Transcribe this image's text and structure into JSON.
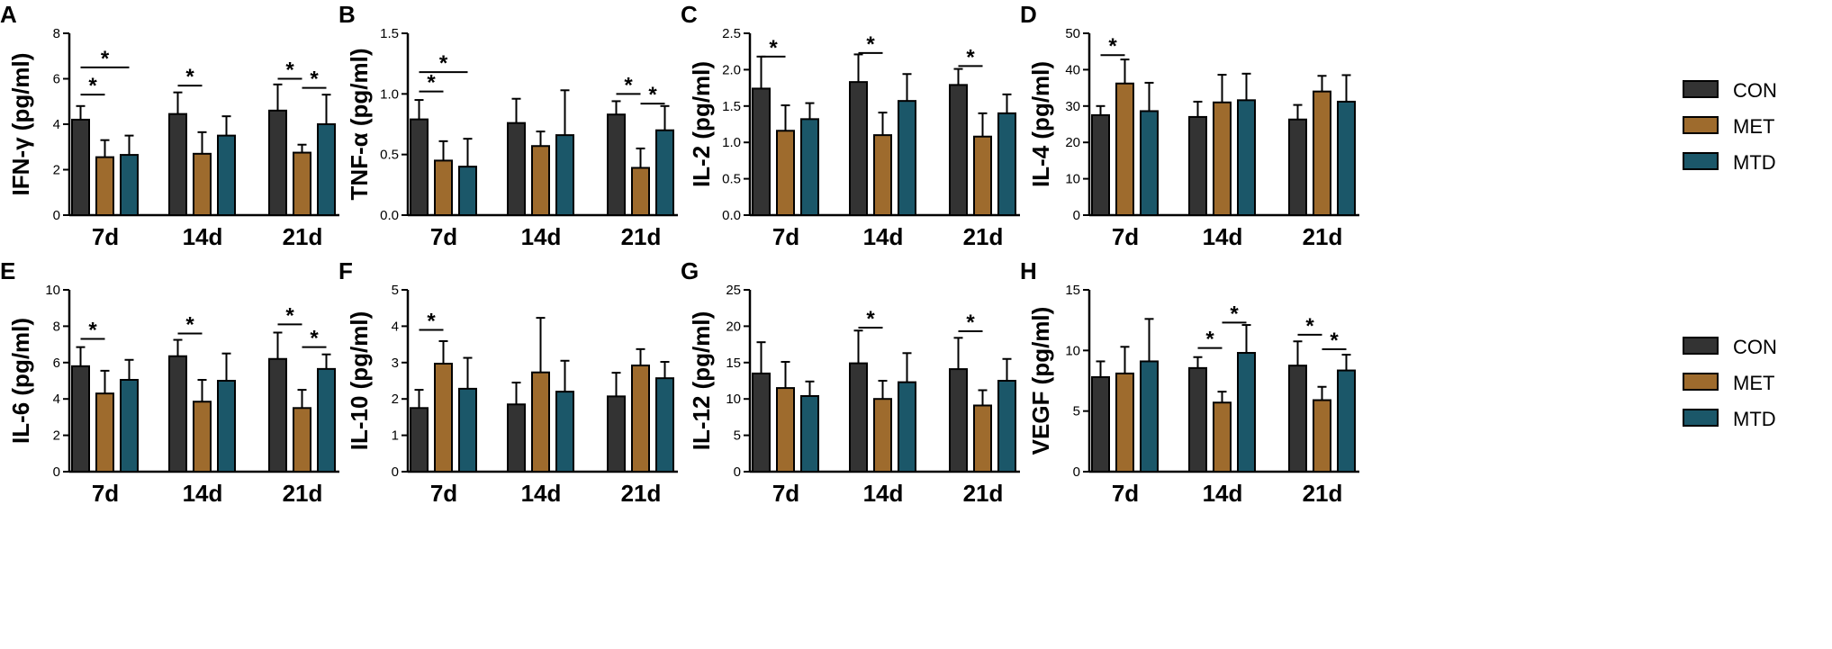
{
  "colors": {
    "CON": "#333333",
    "MET": "#9e6b2d",
    "MTD": "#1b5769",
    "axis": "#000000"
  },
  "legend": [
    {
      "name": "CON",
      "label": "CON"
    },
    {
      "name": "MET",
      "label": "MET"
    },
    {
      "name": "MTD",
      "label": "MTD"
    }
  ],
  "chart_data": [
    {
      "id": "A",
      "panel": "A",
      "type": "bar",
      "ylabel": "IFN-γ (pg/ml)",
      "categories": [
        "7d",
        "14d",
        "21d"
      ],
      "ylim": [
        0,
        8
      ],
      "yticks": [
        0,
        2,
        4,
        6,
        8
      ],
      "series": [
        {
          "name": "CON",
          "values": [
            4.2,
            4.45,
            4.6
          ],
          "errors": [
            0.6,
            0.95,
            1.15
          ]
        },
        {
          "name": "MET",
          "values": [
            2.55,
            2.7,
            2.75
          ],
          "errors": [
            0.75,
            0.95,
            0.35
          ]
        },
        {
          "name": "MTD",
          "values": [
            2.65,
            3.5,
            4.0
          ],
          "errors": [
            0.85,
            0.85,
            1.3
          ]
        }
      ],
      "significance": [
        {
          "group": 0,
          "from": 0,
          "to": 1,
          "level": 5.3,
          "label": "*"
        },
        {
          "group": 0,
          "from": 0,
          "to": 2,
          "level": 6.5,
          "label": "*"
        },
        {
          "group": 1,
          "from": 0,
          "to": 1,
          "level": 5.7,
          "label": "*"
        },
        {
          "group": 2,
          "from": 0,
          "to": 1,
          "level": 6.0,
          "label": "*"
        },
        {
          "group": 2,
          "from": 1,
          "to": 2,
          "level": 5.6,
          "label": "*"
        }
      ]
    },
    {
      "id": "B",
      "panel": "B",
      "type": "bar",
      "ylabel": "TNF-α (pg/ml)",
      "categories": [
        "7d",
        "14d",
        "21d"
      ],
      "ylim": [
        0,
        1.5
      ],
      "yticks": [
        "0.0",
        "0.5",
        "1.0",
        "1.5"
      ],
      "series": [
        {
          "name": "CON",
          "values": [
            0.79,
            0.76,
            0.83
          ],
          "errors": [
            0.16,
            0.2,
            0.11
          ]
        },
        {
          "name": "MET",
          "values": [
            0.45,
            0.57,
            0.39
          ],
          "errors": [
            0.16,
            0.12,
            0.16
          ]
        },
        {
          "name": "MTD",
          "values": [
            0.4,
            0.66,
            0.7
          ],
          "errors": [
            0.23,
            0.37,
            0.2
          ]
        }
      ],
      "significance": [
        {
          "group": 0,
          "from": 0,
          "to": 1,
          "level": 1.02,
          "label": "*"
        },
        {
          "group": 0,
          "from": 0,
          "to": 2,
          "level": 1.18,
          "label": "*"
        },
        {
          "group": 2,
          "from": 0,
          "to": 1,
          "level": 1.0,
          "label": "*"
        },
        {
          "group": 2,
          "from": 1,
          "to": 2,
          "level": 0.92,
          "label": "*"
        }
      ]
    },
    {
      "id": "C",
      "panel": "C",
      "type": "bar",
      "ylabel": "IL-2 (pg/ml)",
      "categories": [
        "7d",
        "14d",
        "21d"
      ],
      "ylim": [
        0,
        2.5
      ],
      "yticks": [
        "0.0",
        "0.5",
        "1.0",
        "1.5",
        "2.0",
        "2.5"
      ],
      "series": [
        {
          "name": "CON",
          "values": [
            1.74,
            1.83,
            1.79
          ],
          "errors": [
            0.44,
            0.38,
            0.22
          ]
        },
        {
          "name": "MET",
          "values": [
            1.16,
            1.1,
            1.08
          ],
          "errors": [
            0.35,
            0.31,
            0.32
          ]
        },
        {
          "name": "MTD",
          "values": [
            1.32,
            1.57,
            1.4
          ],
          "errors": [
            0.22,
            0.37,
            0.26
          ]
        }
      ],
      "significance": [
        {
          "group": 0,
          "from": 0,
          "to": 1,
          "level": 2.18,
          "label": "*"
        },
        {
          "group": 1,
          "from": 0,
          "to": 1,
          "level": 2.23,
          "label": "*"
        },
        {
          "group": 2,
          "from": 0,
          "to": 1,
          "level": 2.05,
          "label": "*"
        }
      ]
    },
    {
      "id": "D",
      "panel": "D",
      "type": "bar",
      "ylabel": "IL-4 (pg/ml)",
      "categories": [
        "7d",
        "14d",
        "21d"
      ],
      "ylim": [
        0,
        50
      ],
      "yticks": [
        0,
        10,
        20,
        30,
        40,
        50
      ],
      "series": [
        {
          "name": "CON",
          "values": [
            27.5,
            27.0,
            26.3
          ],
          "errors": [
            2.5,
            4.2,
            4.0
          ]
        },
        {
          "name": "MET",
          "values": [
            36.2,
            31.0,
            34.0
          ],
          "errors": [
            6.6,
            7.6,
            4.3
          ]
        },
        {
          "name": "MTD",
          "values": [
            28.6,
            31.6,
            31.2
          ],
          "errors": [
            7.8,
            7.3,
            7.3
          ]
        }
      ],
      "significance": [
        {
          "group": 0,
          "from": 0,
          "to": 1,
          "level": 44.0,
          "label": "*"
        }
      ]
    },
    {
      "id": "E",
      "panel": "E",
      "type": "bar",
      "ylabel": "IL-6 (pg/ml)",
      "categories": [
        "7d",
        "14d",
        "21d"
      ],
      "ylim": [
        0,
        10
      ],
      "yticks": [
        0,
        2,
        4,
        6,
        8,
        10
      ],
      "series": [
        {
          "name": "CON",
          "values": [
            5.8,
            6.35,
            6.2
          ],
          "errors": [
            1.05,
            0.9,
            1.45
          ]
        },
        {
          "name": "MET",
          "values": [
            4.3,
            3.85,
            3.5
          ],
          "errors": [
            1.25,
            1.2,
            1.0
          ]
        },
        {
          "name": "MTD",
          "values": [
            5.05,
            5.0,
            5.65
          ],
          "errors": [
            1.1,
            1.5,
            0.8
          ]
        }
      ],
      "significance": [
        {
          "group": 0,
          "from": 0,
          "to": 1,
          "level": 7.3,
          "label": "*"
        },
        {
          "group": 1,
          "from": 0,
          "to": 1,
          "level": 7.6,
          "label": "*"
        },
        {
          "group": 2,
          "from": 0,
          "to": 1,
          "level": 8.1,
          "label": "*"
        },
        {
          "group": 2,
          "from": 1,
          "to": 2,
          "level": 6.85,
          "label": "*"
        }
      ]
    },
    {
      "id": "F",
      "panel": "F",
      "type": "bar",
      "ylabel": "IL-10 (pg/ml)",
      "categories": [
        "7d",
        "14d",
        "21d"
      ],
      "ylim": [
        0,
        5
      ],
      "yticks": [
        0,
        1,
        2,
        3,
        4,
        5
      ],
      "series": [
        {
          "name": "CON",
          "values": [
            1.75,
            1.85,
            2.07
          ],
          "errors": [
            0.5,
            0.6,
            0.65
          ]
        },
        {
          "name": "MET",
          "values": [
            2.97,
            2.73,
            2.92
          ],
          "errors": [
            0.62,
            1.5,
            0.45
          ]
        },
        {
          "name": "MTD",
          "values": [
            2.28,
            2.2,
            2.57
          ],
          "errors": [
            0.85,
            0.85,
            0.45
          ]
        }
      ],
      "significance": [
        {
          "group": 0,
          "from": 0,
          "to": 1,
          "level": 3.9,
          "label": "*"
        }
      ]
    },
    {
      "id": "G",
      "panel": "G",
      "type": "bar",
      "ylabel": "IL-12 (pg/ml)",
      "categories": [
        "7d",
        "14d",
        "21d"
      ],
      "ylim": [
        0,
        25
      ],
      "yticks": [
        0,
        5,
        10,
        15,
        20,
        25
      ],
      "series": [
        {
          "name": "CON",
          "values": [
            13.5,
            14.9,
            14.1
          ],
          "errors": [
            4.3,
            4.5,
            4.3
          ]
        },
        {
          "name": "MET",
          "values": [
            11.5,
            10.0,
            9.1
          ],
          "errors": [
            3.6,
            2.5,
            2.1
          ]
        },
        {
          "name": "MTD",
          "values": [
            10.4,
            12.3,
            12.5
          ],
          "errors": [
            2.0,
            4.0,
            3.0
          ]
        }
      ],
      "significance": [
        {
          "group": 1,
          "from": 0,
          "to": 1,
          "level": 19.8,
          "label": "*"
        },
        {
          "group": 2,
          "from": 0,
          "to": 1,
          "level": 19.3,
          "label": "*"
        }
      ]
    },
    {
      "id": "H",
      "panel": "H",
      "type": "bar",
      "ylabel": "VEGF (pg/ml)",
      "categories": [
        "7d",
        "14d",
        "21d"
      ],
      "ylim": [
        0,
        15
      ],
      "yticks": [
        0,
        5,
        10,
        15
      ],
      "series": [
        {
          "name": "CON",
          "values": [
            7.8,
            8.55,
            8.75
          ],
          "errors": [
            1.3,
            0.9,
            2.0
          ]
        },
        {
          "name": "MET",
          "values": [
            8.1,
            5.7,
            5.9
          ],
          "errors": [
            2.2,
            0.9,
            1.1
          ]
        },
        {
          "name": "MTD",
          "values": [
            9.1,
            9.8,
            8.35
          ],
          "errors": [
            3.5,
            2.3,
            1.3
          ]
        }
      ],
      "significance": [
        {
          "group": 1,
          "from": 0,
          "to": 1,
          "level": 10.2,
          "label": "*"
        },
        {
          "group": 1,
          "from": 1,
          "to": 2,
          "level": 12.3,
          "label": "*"
        },
        {
          "group": 2,
          "from": 0,
          "to": 1,
          "level": 11.3,
          "label": "*"
        },
        {
          "group": 2,
          "from": 1,
          "to": 2,
          "level": 10.1,
          "label": "*"
        }
      ]
    }
  ]
}
